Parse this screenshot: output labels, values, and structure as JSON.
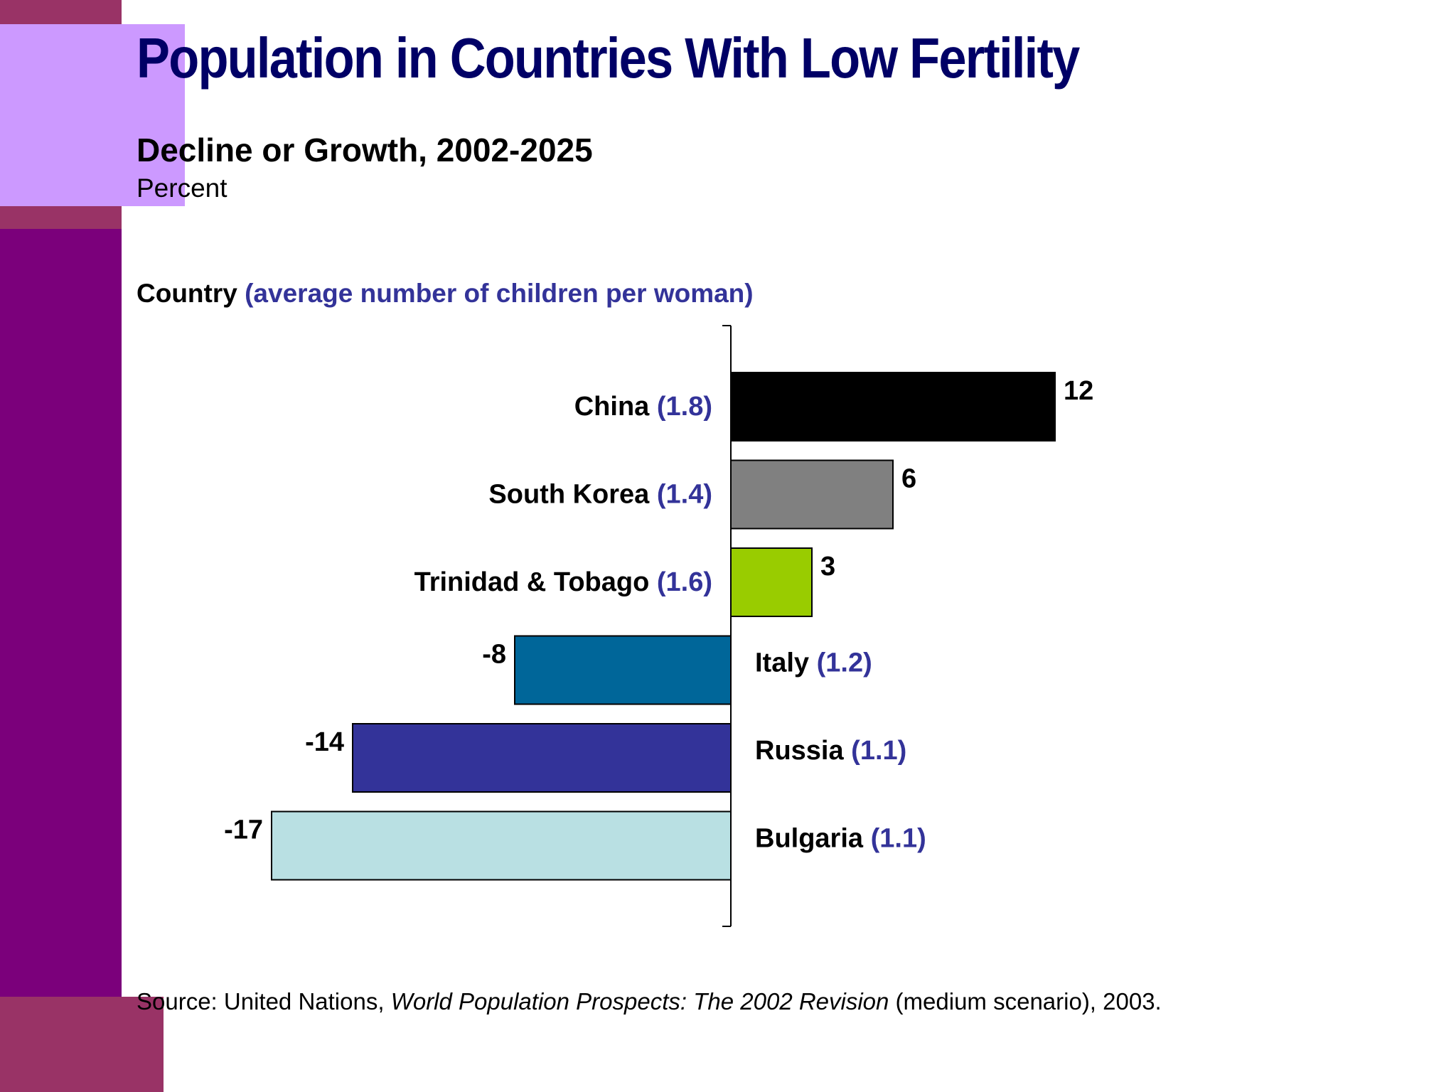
{
  "slide": {
    "title": "Population in Countries With Low Fertility",
    "subtitle": "Decline or Growth, 2002-2025",
    "unit": "Percent",
    "axis_heading_main": "Country ",
    "axis_heading_accent": "(average number of children per woman)",
    "source_prefix": "Source: United Nations, ",
    "source_title": "World Population Prospects: The 2002 Revision",
    "source_suffix": " (medium scenario), 2003."
  },
  "colors": {
    "label": "#000000",
    "accent": "#333399",
    "stripe": "#7b007b"
  },
  "chart_data": {
    "type": "bar",
    "orientation": "horizontal",
    "xlim": [
      -17,
      12
    ],
    "grid": false,
    "legend": "none",
    "categories": [
      {
        "name": "China",
        "tfr": "(1.8)",
        "value": 12,
        "value_label": "12",
        "color": "#000000"
      },
      {
        "name": "South Korea",
        "tfr": "(1.4)",
        "value": 6,
        "value_label": "6",
        "color": "#808080"
      },
      {
        "name": "Trinidad & Tobago",
        "tfr": "(1.6)",
        "value": 3,
        "value_label": "3",
        "color": "#99cc00"
      },
      {
        "name": "Italy",
        "tfr": "(1.2)",
        "value": -8,
        "value_label": "-8",
        "color": "#006699"
      },
      {
        "name": "Russia",
        "tfr": "(1.1)",
        "value": -14,
        "value_label": "-14",
        "color": "#333399"
      },
      {
        "name": "Bulgaria",
        "tfr": "(1.1)",
        "value": -17,
        "value_label": "-17",
        "color": "#b9e0e3"
      }
    ]
  }
}
